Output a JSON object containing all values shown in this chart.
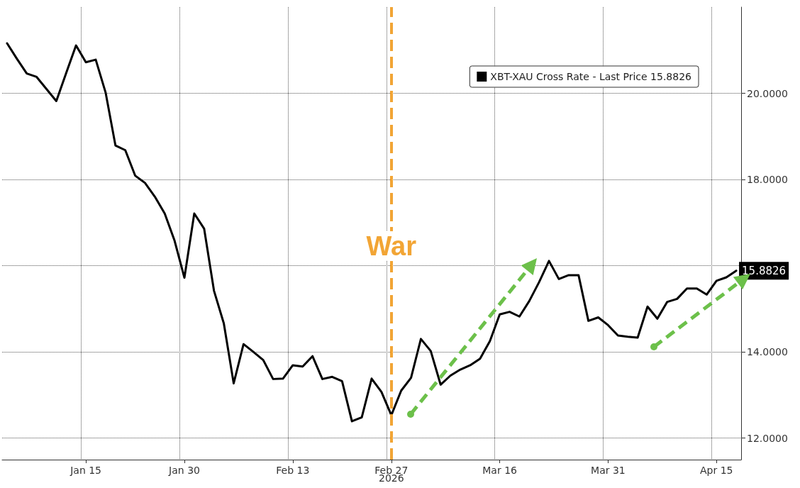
{
  "chart_data": {
    "type": "line",
    "categories": [
      null,
      null,
      null,
      null,
      null,
      null,
      null,
      null,
      "Jan 15",
      null,
      null,
      null,
      null,
      null,
      null,
      null,
      null,
      null,
      "Jan 30",
      null,
      null,
      null,
      null,
      null,
      null,
      null,
      null,
      null,
      null,
      "Feb 13",
      null,
      null,
      null,
      null,
      null,
      null,
      null,
      null,
      null,
      "Feb 27",
      null,
      null,
      null,
      null,
      null,
      null,
      null,
      null,
      null,
      null,
      "Mar 16",
      null,
      null,
      null,
      null,
      null,
      null,
      null,
      null,
      null,
      null,
      "Mar 31",
      null,
      null,
      null,
      null,
      null,
      null,
      null,
      null,
      null,
      null,
      "Apr 15",
      null,
      null
    ],
    "series": [
      {
        "name": "XBT-XAU Cross Rate - Last Price 15.8826",
        "color": "#000000",
        "values": [
          21.16,
          20.8,
          20.46,
          20.38,
          20.1,
          19.82,
          20.47,
          21.11,
          20.72,
          20.78,
          20.02,
          18.79,
          18.68,
          18.09,
          17.92,
          17.6,
          17.21,
          16.58,
          15.72,
          17.21,
          16.86,
          15.42,
          14.66,
          13.27,
          14.18,
          14.0,
          13.81,
          13.37,
          13.38,
          13.69,
          13.66,
          13.9,
          13.37,
          13.42,
          13.32,
          12.39,
          12.48,
          13.38,
          13.07,
          12.53,
          13.1,
          13.4,
          14.3,
          14.02,
          13.24,
          13.45,
          13.59,
          13.69,
          13.84,
          14.25,
          14.87,
          14.93,
          14.82,
          15.18,
          15.62,
          16.11,
          15.69,
          15.78,
          15.78,
          14.72,
          14.8,
          14.62,
          14.38,
          14.35,
          14.33,
          15.05,
          14.77,
          15.16,
          15.23,
          15.47,
          15.47,
          15.33,
          15.65,
          15.73,
          15.8826
        ],
        "value_labels": [
          null,
          null,
          null,
          null,
          null,
          null,
          null,
          null,
          null,
          null,
          null,
          null,
          null,
          null,
          null,
          null,
          null,
          null,
          null,
          null,
          null,
          null,
          null,
          null,
          null,
          null,
          null,
          null,
          null,
          null,
          null,
          null,
          null,
          null,
          null,
          null,
          null,
          null,
          null,
          null,
          null,
          null,
          null,
          null,
          null,
          null,
          null,
          null,
          null,
          null,
          null,
          null,
          null,
          null,
          null,
          null,
          null,
          null,
          null,
          null,
          null,
          null,
          null,
          null,
          null,
          null,
          null,
          null,
          null,
          null,
          null,
          null,
          null,
          null,
          "15.8826"
        ]
      }
    ],
    "ylim": [
      11.5,
      22
    ],
    "yticks": [
      {
        "value": 12,
        "label": "12.0000"
      },
      {
        "value": 14,
        "label": "14.0000"
      },
      {
        "value": 16,
        "label": null
      },
      {
        "value": 18,
        "label": "18.0000"
      },
      {
        "value": 20,
        "label": "20.0000"
      }
    ],
    "ref_lines": [
      {
        "axis": "x",
        "value": "Feb 27",
        "label": "War",
        "color": "#f2a535",
        "line_style": "dashed"
      }
    ],
    "annotations": [
      "2026"
    ],
    "grid": true,
    "legend": "top right",
    "marker": "none",
    "line_style": "solid"
  }
}
